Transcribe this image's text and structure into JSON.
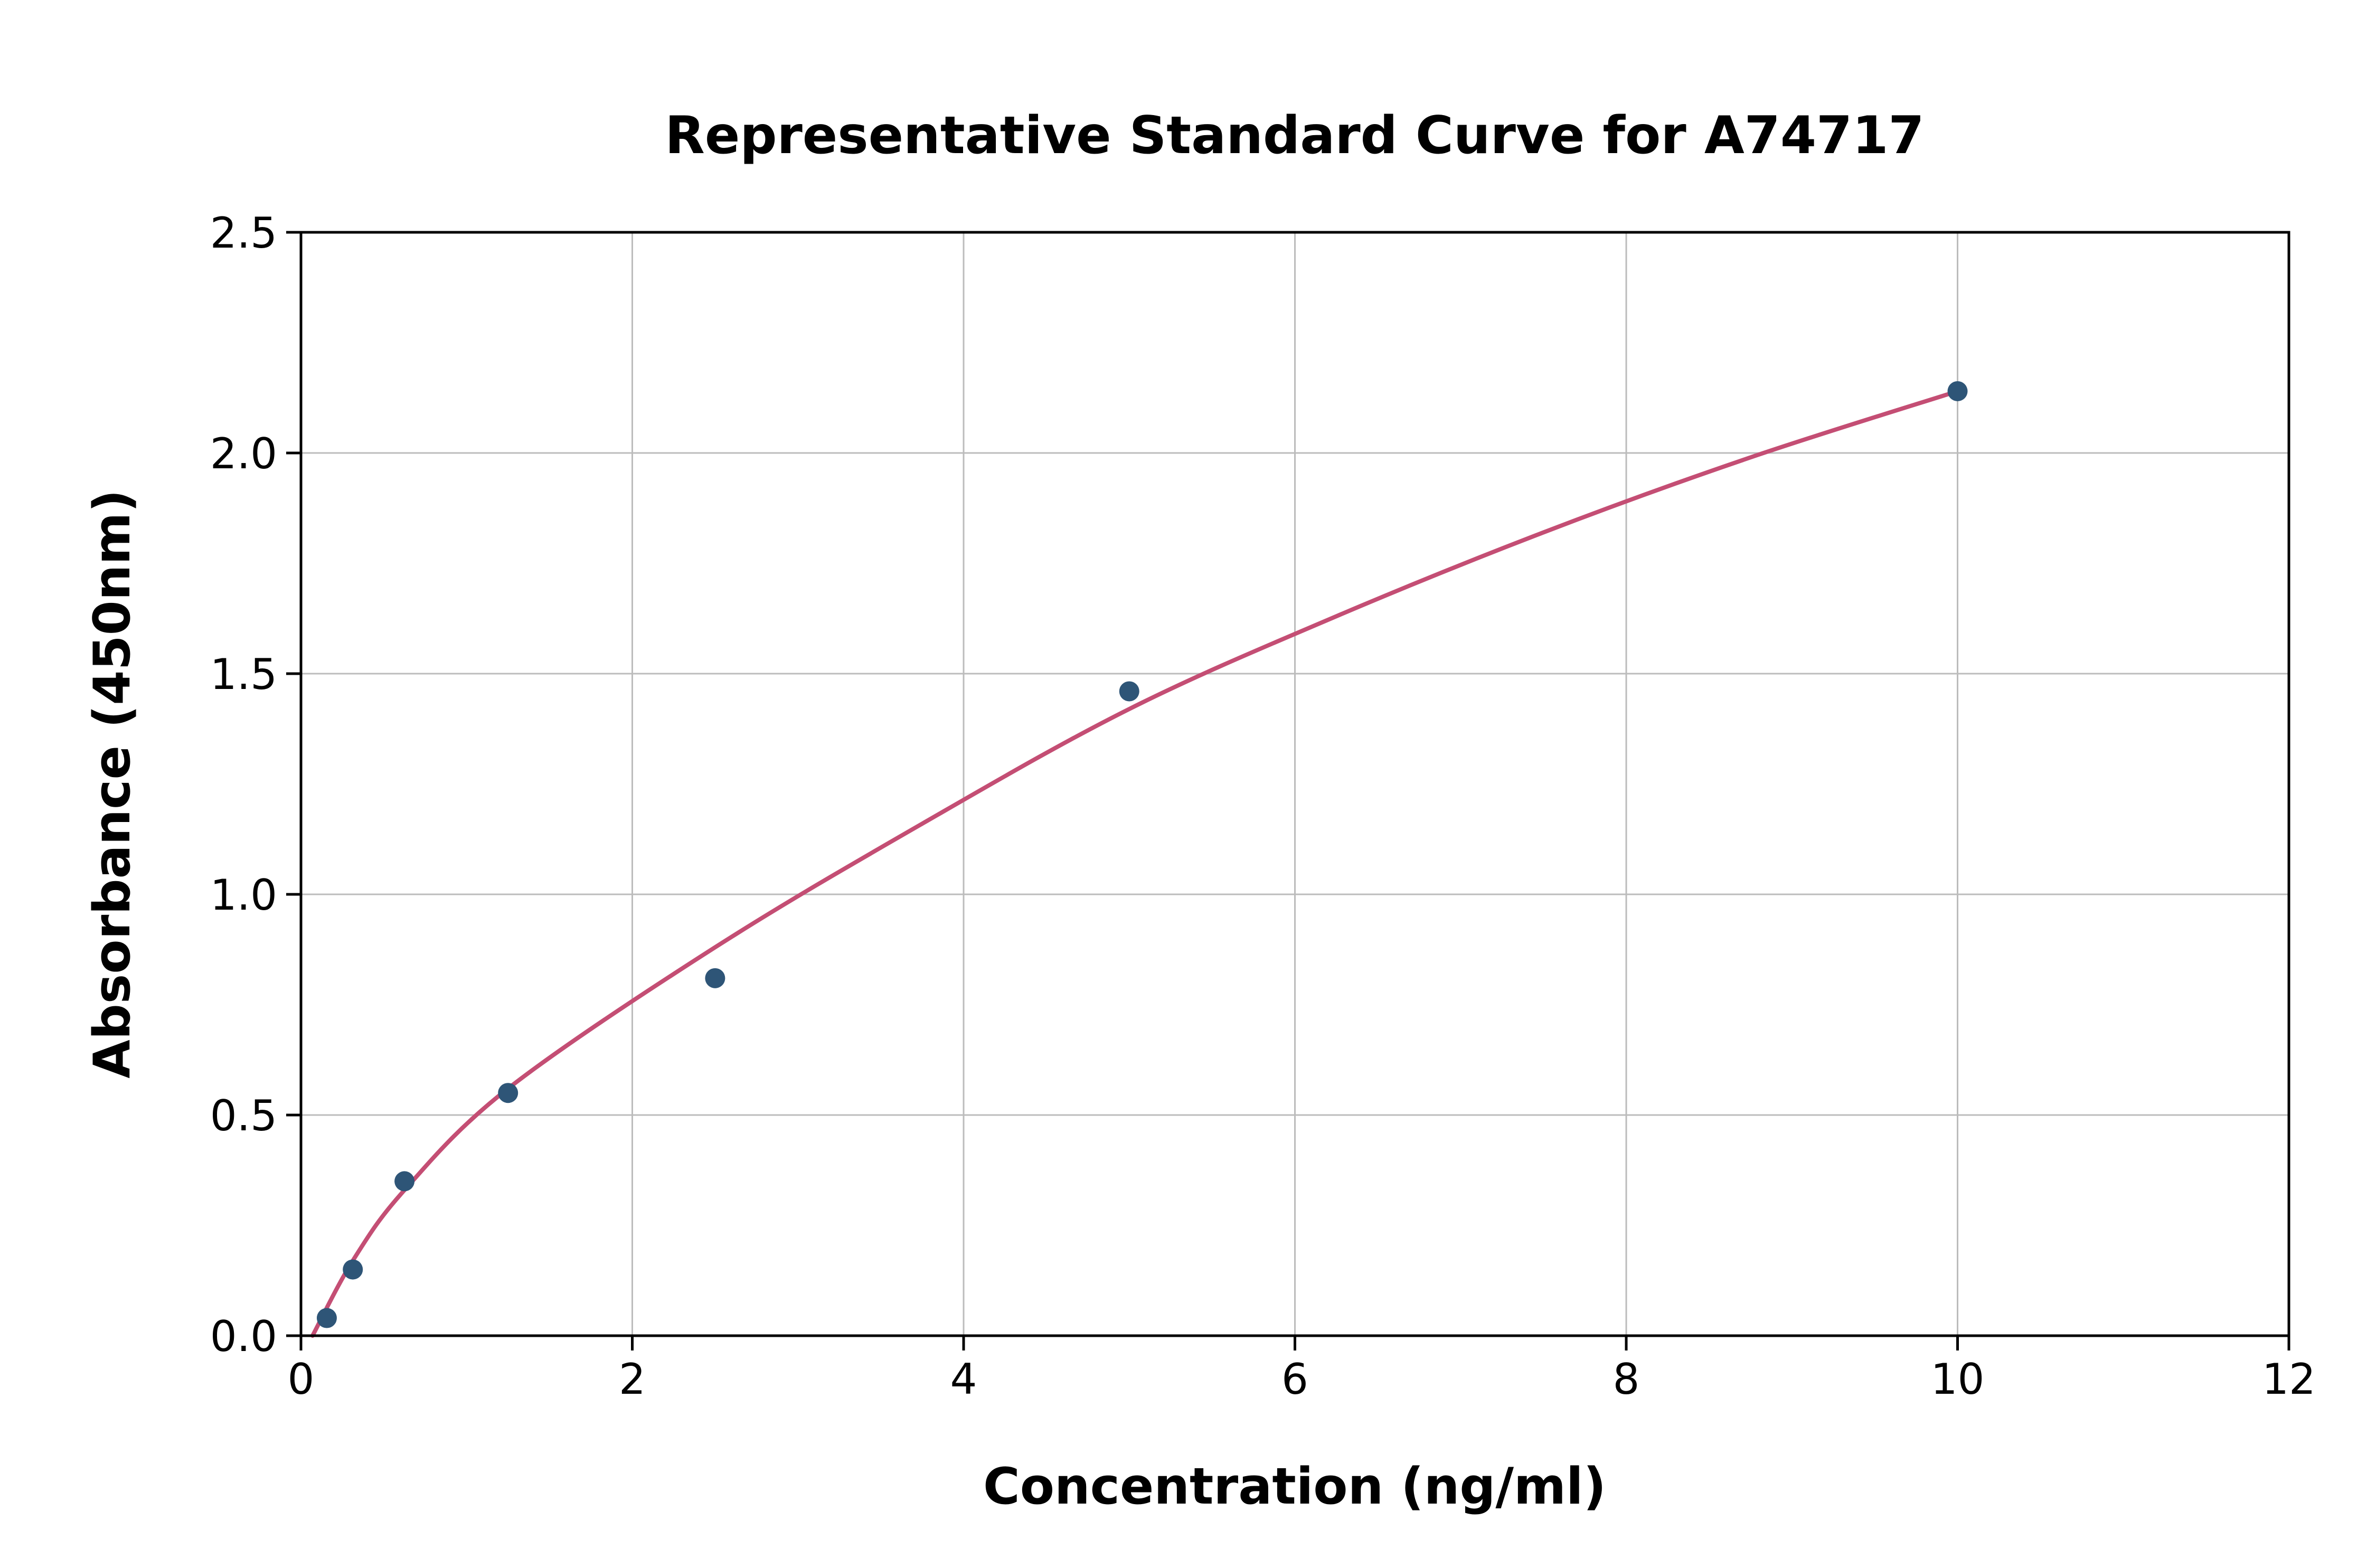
{
  "chart_data": {
    "type": "scatter",
    "title": "Representative Standard Curve for A74717",
    "xlabel": "Concentration (ng/ml)",
    "ylabel": "Absorbance (450nm)",
    "xlim": [
      0,
      12
    ],
    "ylim": [
      0,
      2.5
    ],
    "x_ticks": [
      0,
      2,
      4,
      6,
      8,
      10,
      12
    ],
    "x_tick_labels": [
      "0",
      "2",
      "4",
      "6",
      "8",
      "10",
      "12"
    ],
    "y_ticks": [
      0.0,
      0.5,
      1.0,
      1.5,
      2.0,
      2.5
    ],
    "y_tick_labels": [
      "0.0",
      "0.5",
      "1.0",
      "1.5",
      "2.0",
      "2.5"
    ],
    "grid": true,
    "legend": "none",
    "points": [
      {
        "x": 0.156,
        "y": 0.04
      },
      {
        "x": 0.313,
        "y": 0.15
      },
      {
        "x": 0.625,
        "y": 0.35
      },
      {
        "x": 1.25,
        "y": 0.55
      },
      {
        "x": 2.5,
        "y": 0.81
      },
      {
        "x": 5,
        "y": 1.46
      },
      {
        "x": 10,
        "y": 2.14
      }
    ],
    "fit_curve_points": [
      [
        0.07,
        0.0
      ],
      [
        0.313,
        0.17
      ],
      [
        0.625,
        0.33
      ],
      [
        1.25,
        0.56
      ],
      [
        2.5,
        0.88
      ],
      [
        3.75,
        1.16
      ],
      [
        5.0,
        1.42
      ],
      [
        6.25,
        1.63
      ],
      [
        7.5,
        1.82
      ],
      [
        8.75,
        1.99
      ],
      [
        10.0,
        2.14
      ]
    ],
    "point_color": "#2e5577",
    "curve_color": "#c44e74",
    "grid_color": "#bcbcbc",
    "axis_color": "#000000"
  }
}
